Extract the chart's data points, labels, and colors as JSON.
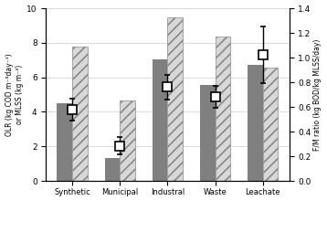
{
  "categories": [
    "Synthetic",
    "Municipal",
    "Industral",
    "Waste",
    "Leachate"
  ],
  "OLR": [
    4.5,
    1.35,
    7.05,
    5.55,
    6.75
  ],
  "MLSS": [
    7.8,
    4.65,
    9.5,
    8.35,
    6.55
  ],
  "FM_ratio": [
    0.58,
    0.285,
    0.76,
    0.68,
    1.02
  ],
  "FM_error_low": [
    0.09,
    0.07,
    0.1,
    0.09,
    0.23
  ],
  "FM_error_high": [
    0.09,
    0.07,
    0.1,
    0.09,
    0.23
  ],
  "OLR_color": "#808080",
  "MLSS_facecolor": "#d8d8d8",
  "MLSS_hatch": "///",
  "MLSS_edgecolor": "#888888",
  "ylim_left": [
    0,
    10
  ],
  "ylim_right": [
    0,
    1.4
  ],
  "yticks_left": [
    0,
    2,
    4,
    6,
    8,
    10
  ],
  "yticks_right": [
    0,
    0.2,
    0.4,
    0.6,
    0.8,
    1.0,
    1.2,
    1.4
  ],
  "ylabel_left": "OLR (kg COD m⁻³day⁻¹)\nor MLSS (kg m⁻³)",
  "ylabel_right": "F/M ratio (kg BOD/kg MLSS/day)",
  "bar_width": 0.32,
  "grid_color": "#cccccc",
  "figsize": [
    3.58,
    2.54
  ],
  "dpi": 100
}
